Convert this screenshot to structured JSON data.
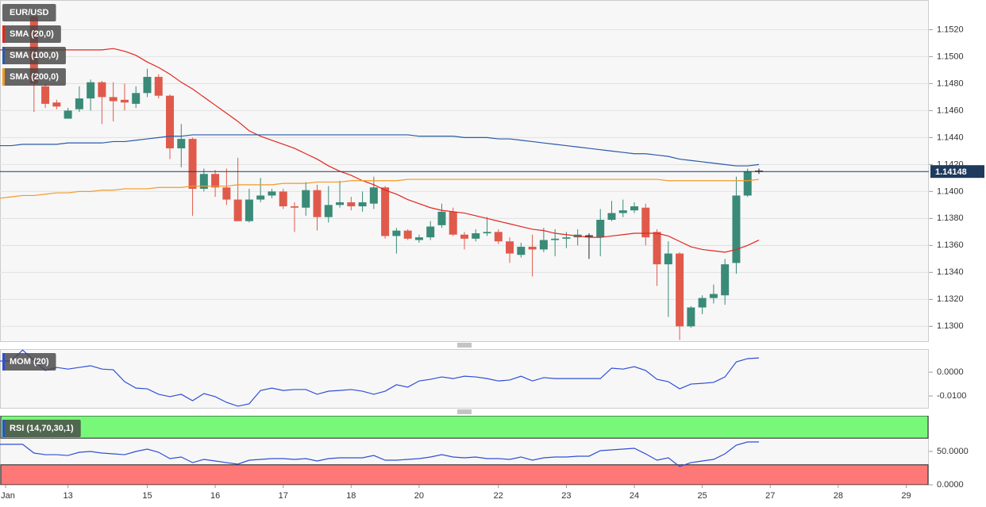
{
  "chart_data": [
    {
      "type": "candlestick",
      "title": "EUR/USD",
      "x": [
        -3,
        -2,
        -1,
        0,
        1,
        2,
        3,
        4,
        5,
        6,
        7,
        8,
        9,
        10,
        11,
        12,
        13,
        14,
        15,
        16,
        17,
        18,
        19,
        20,
        21,
        22,
        23,
        24,
        25,
        26,
        27,
        28,
        29,
        30,
        31,
        32,
        33,
        34,
        35,
        36,
        37,
        38,
        39,
        40,
        41,
        42,
        43,
        44,
        45,
        46,
        47,
        48,
        49,
        50,
        51,
        52,
        53,
        54,
        55,
        56,
        57,
        58,
        59,
        60,
        61,
        62,
        63,
        64
      ],
      "xlim": [
        -3,
        79
      ],
      "ylim": [
        1.1289,
        1.1542
      ],
      "yticks": [
        {
          "value": 1.13,
          "label": "1.1300"
        },
        {
          "value": 1.132,
          "label": "1.1320"
        },
        {
          "value": 1.134,
          "label": "1.1340"
        },
        {
          "value": 1.136,
          "label": "1.1360"
        },
        {
          "value": 1.138,
          "label": "1.1380"
        },
        {
          "value": 1.14,
          "label": "1.1400"
        },
        {
          "value": 1.142,
          "label": "1.1420"
        },
        {
          "value": 1.144,
          "label": "1.1440"
        },
        {
          "value": 1.146,
          "label": "1.1460"
        },
        {
          "value": 1.148,
          "label": "1.1480"
        },
        {
          "value": 1.15,
          "label": "1.1500"
        },
        {
          "value": 1.152,
          "label": "1.1520"
        }
      ],
      "grid": true,
      "open": [
        null,
        null,
        null,
        1.153,
        1.1478,
        1.1466,
        1.1454,
        1.1461,
        1.1469,
        1.1481,
        1.147,
        1.1468,
        1.1465,
        1.1473,
        1.1485,
        1.1471,
        1.1432,
        1.1439,
        1.1402,
        1.1413,
        1.1403,
        1.1394,
        1.1378,
        1.1394,
        1.1397,
        1.14,
        1.1389,
        1.1388,
        1.1401,
        1.1381,
        1.139,
        1.1392,
        1.1389,
        1.1391,
        1.1403,
        1.1367,
        1.1371,
        1.1364,
        1.1366,
        1.1375,
        1.1385,
        1.1368,
        1.1365,
        1.1369,
        1.137,
        1.1363,
        1.1353,
        1.1359,
        1.1357,
        1.1364,
        1.1365,
        1.1366,
        1.1367,
        1.1366,
        1.1379,
        1.1384,
        1.1386,
        1.1388,
        1.137,
        1.1346,
        1.1354,
        1.13,
        1.1314,
        1.1321,
        1.1323,
        1.1347,
        1.1397,
        1.1415
      ],
      "high": [
        null,
        null,
        null,
        1.1535,
        1.148,
        1.1468,
        1.1462,
        1.1478,
        1.1483,
        1.1482,
        1.1481,
        1.148,
        1.1478,
        1.1491,
        1.1487,
        1.1472,
        1.145,
        1.144,
        1.1417,
        1.1416,
        1.1417,
        1.1425,
        1.1402,
        1.141,
        1.1402,
        1.1402,
        1.1392,
        1.1407,
        1.1405,
        1.1404,
        1.1408,
        1.1396,
        1.14,
        1.1411,
        1.1404,
        1.1373,
        1.1372,
        1.1368,
        1.1378,
        1.1391,
        1.1388,
        1.137,
        1.1372,
        1.1381,
        1.1372,
        1.1366,
        1.1362,
        1.1368,
        1.1373,
        1.1372,
        1.137,
        1.1372,
        1.1369,
        1.1387,
        1.1393,
        1.1394,
        1.1392,
        1.1391,
        1.1372,
        1.1363,
        1.1355,
        1.1315,
        1.1323,
        1.1331,
        1.135,
        1.1411,
        1.1417,
        1.1417
      ],
      "low": [
        null,
        null,
        null,
        1.1459,
        1.1462,
        1.1461,
        1.1454,
        1.1459,
        1.146,
        1.145,
        1.1452,
        1.146,
        1.1462,
        1.147,
        1.1469,
        1.1424,
        1.1418,
        1.1382,
        1.14,
        1.1396,
        1.139,
        1.1378,
        1.1377,
        1.1392,
        1.1395,
        1.1387,
        1.137,
        1.1382,
        1.1371,
        1.1377,
        1.1388,
        1.1386,
        1.1385,
        1.1387,
        1.1365,
        1.1354,
        1.1364,
        1.1362,
        1.1364,
        1.1373,
        1.1367,
        1.1357,
        1.1363,
        1.1367,
        1.1361,
        1.1347,
        1.1351,
        1.1337,
        1.1355,
        1.1352,
        1.1358,
        1.136,
        1.135,
        1.1352,
        1.1378,
        1.1381,
        1.1384,
        1.136,
        1.133,
        1.1307,
        1.129,
        1.1299,
        1.1309,
        1.1317,
        1.1316,
        1.1339,
        1.1396,
        1.1413
      ],
      "close": [
        null,
        null,
        null,
        1.148,
        1.1465,
        1.1463,
        1.146,
        1.1469,
        1.1481,
        1.147,
        1.1467,
        1.1466,
        1.1473,
        1.1485,
        1.1471,
        1.1432,
        1.1439,
        1.1402,
        1.1413,
        1.1403,
        1.1394,
        1.1378,
        1.1394,
        1.1397,
        1.14,
        1.1389,
        1.1388,
        1.1401,
        1.1381,
        1.139,
        1.1392,
        1.1389,
        1.1392,
        1.1403,
        1.1367,
        1.1371,
        1.1365,
        1.1366,
        1.1374,
        1.1385,
        1.1368,
        1.1365,
        1.1369,
        1.137,
        1.1363,
        1.1354,
        1.1359,
        1.1357,
        1.1364,
        1.1365,
        1.1366,
        1.1368,
        1.1367,
        1.1379,
        1.1384,
        1.1386,
        1.1389,
        1.1366,
        1.1346,
        1.1354,
        1.13,
        1.1314,
        1.1321,
        1.1324,
        1.1346,
        1.1397,
        1.1415,
        1.1415
      ],
      "up_color": "#3a8a78",
      "down_color": "#e05a4b",
      "doji_color": "#222222",
      "series": [
        {
          "name": "SMA (20,0)",
          "color": "#e3261f",
          "values": [
            1.1505,
            1.1505,
            1.1505,
            1.1505,
            1.1505,
            1.1505,
            1.1505,
            1.1505,
            1.1505,
            1.1505,
            1.1506,
            1.1504,
            1.1501,
            1.1496,
            1.1492,
            1.1487,
            1.1481,
            1.1476,
            1.147,
            1.1464,
            1.1458,
            1.1452,
            1.1445,
            1.1441,
            1.1438,
            1.1435,
            1.1432,
            1.1428,
            1.1424,
            1.1419,
            1.1415,
            1.1412,
            1.1408,
            1.1405,
            1.1401,
            1.1398,
            1.1394,
            1.1391,
            1.1388,
            1.1386,
            1.1385,
            1.1384,
            1.1382,
            1.138,
            1.1378,
            1.1376,
            1.1374,
            1.1372,
            1.1371,
            1.1369,
            1.1368,
            1.1367,
            1.1366,
            1.1366,
            1.1367,
            1.1368,
            1.1369,
            1.1369,
            1.1369,
            1.1367,
            1.1363,
            1.1359,
            1.1357,
            1.1356,
            1.1355,
            1.1357,
            1.136,
            1.1364
          ]
        },
        {
          "name": "SMA (100,0)",
          "color": "#2a5aa8",
          "values": [
            1.1434,
            1.1434,
            1.1435,
            1.1435,
            1.1435,
            1.1435,
            1.1436,
            1.1436,
            1.1436,
            1.1436,
            1.1437,
            1.1437,
            1.1438,
            1.1439,
            1.144,
            1.1441,
            1.1441,
            1.1442,
            1.1442,
            1.1442,
            1.1442,
            1.1442,
            1.1442,
            1.1442,
            1.1442,
            1.1442,
            1.1442,
            1.1442,
            1.1442,
            1.1442,
            1.1442,
            1.1442,
            1.1442,
            1.1442,
            1.1442,
            1.1442,
            1.1442,
            1.1441,
            1.1441,
            1.1441,
            1.1441,
            1.144,
            1.144,
            1.144,
            1.1439,
            1.1439,
            1.1438,
            1.1437,
            1.1436,
            1.1435,
            1.1434,
            1.1433,
            1.1432,
            1.1431,
            1.143,
            1.1429,
            1.1428,
            1.1428,
            1.1427,
            1.1426,
            1.1424,
            1.1423,
            1.1422,
            1.1421,
            1.142,
            1.1419,
            1.1419,
            1.142
          ]
        },
        {
          "name": "SMA (200,0)",
          "color": "#f29a26",
          "values": [
            1.1395,
            1.1396,
            1.1397,
            1.1397,
            1.1398,
            1.1399,
            1.1399,
            1.14,
            1.14,
            1.1401,
            1.1401,
            1.1402,
            1.1402,
            1.1402,
            1.1403,
            1.1403,
            1.1403,
            1.1404,
            1.1404,
            1.1404,
            1.1404,
            1.1405,
            1.1405,
            1.1405,
            1.1405,
            1.1406,
            1.1406,
            1.1406,
            1.1407,
            1.1407,
            1.1407,
            1.1408,
            1.1408,
            1.1408,
            1.1408,
            1.1408,
            1.1409,
            1.1409,
            1.1409,
            1.1409,
            1.1409,
            1.1409,
            1.1409,
            1.1409,
            1.1409,
            1.1409,
            1.1409,
            1.1409,
            1.1409,
            1.1409,
            1.1409,
            1.1409,
            1.1409,
            1.1409,
            1.1409,
            1.1409,
            1.1409,
            1.1409,
            1.1409,
            1.1408,
            1.1408,
            1.1408,
            1.1408,
            1.1408,
            1.1408,
            1.1408,
            1.1408,
            1.1409
          ]
        }
      ],
      "last_price": 1.14148,
      "last_price_color": "#1e3a5c"
    },
    {
      "type": "line",
      "ylim": [
        -0.015,
        0.0097
      ],
      "yticks": [
        {
          "value": -0.01,
          "label": "-0.0100"
        },
        {
          "value": 0,
          "label": "0.0000"
        }
      ],
      "series": [
        {
          "name": "MOM (20)",
          "color": "#2f4fd6",
          "values": [
            0.0047,
            0.0047,
            0.0093,
            0.005,
            0.0007,
            0.002,
            0.0013,
            0.002,
            0.0027,
            0.0013,
            0.001,
            -0.004,
            -0.0067,
            -0.007,
            -0.0093,
            -0.0103,
            -0.0093,
            -0.012,
            -0.009,
            -0.0103,
            -0.0127,
            -0.0143,
            -0.0133,
            -0.0077,
            -0.0067,
            -0.0077,
            -0.0073,
            -0.0073,
            -0.0093,
            -0.008,
            -0.0077,
            -0.0073,
            -0.008,
            -0.0093,
            -0.008,
            -0.0053,
            -0.0063,
            -0.0037,
            -0.003,
            -0.002,
            -0.0027,
            -0.0017,
            -0.002,
            -0.0027,
            -0.0037,
            -0.0033,
            -0.0017,
            -0.0037,
            -0.0023,
            -0.0027,
            -0.0027,
            -0.0027,
            -0.0027,
            -0.0027,
            0.0017,
            0.0013,
            0.0023,
            0.0007,
            -0.003,
            -0.004,
            -0.007,
            -0.005,
            -0.0047,
            -0.0043,
            -0.002,
            0.0043,
            0.0057,
            0.006
          ]
        }
      ]
    },
    {
      "type": "line",
      "ylim": [
        0,
        103.6
      ],
      "yticks": [
        {
          "value": 0,
          "label": "0.0000"
        },
        {
          "value": 50,
          "label": "50.0000"
        }
      ],
      "overbought": 70,
      "overbought_color": "#78f878",
      "oversold": 30,
      "oversold_color": "#ff7878",
      "series": [
        {
          "name": "RSI (14,70,30,1)",
          "color": "#2f4fd6",
          "values": [
            60.7,
            60.7,
            60.7,
            47.6,
            45.2,
            45.2,
            44.0,
            48.8,
            50.0,
            47.6,
            46.4,
            45.2,
            50.0,
            53.6,
            48.8,
            39.3,
            41.7,
            33.3,
            38.1,
            35.7,
            33.3,
            31.0,
            36.9,
            38.1,
            39.3,
            39.3,
            38.1,
            39.3,
            35.7,
            39.3,
            40.5,
            40.5,
            40.5,
            44.0,
            36.9,
            36.9,
            38.1,
            39.3,
            41.7,
            45.2,
            41.7,
            40.5,
            41.7,
            39.3,
            39.3,
            38.1,
            41.7,
            36.9,
            40.5,
            41.7,
            41.7,
            42.9,
            42.9,
            51.2,
            52.4,
            53.6,
            54.8,
            46.4,
            36.9,
            40.5,
            27.4,
            33.3,
            35.7,
            38.1,
            46.4,
            59.5,
            64.3,
            64.3
          ]
        }
      ],
      "xticks": [
        {
          "value": -2.5,
          "label": "Jan"
        },
        {
          "value": 3,
          "label": "13"
        },
        {
          "value": 10,
          "label": "15"
        },
        {
          "value": 16,
          "label": "16"
        },
        {
          "value": 22,
          "label": "17"
        },
        {
          "value": 28,
          "label": "18"
        },
        {
          "value": 34,
          "label": "20"
        },
        {
          "value": 41,
          "label": "22"
        },
        {
          "value": 47,
          "label": "23"
        },
        {
          "value": 53,
          "label": "24"
        },
        {
          "value": 59,
          "label": "25"
        },
        {
          "value": 65,
          "label": "27"
        },
        {
          "value": 71,
          "label": "28"
        },
        {
          "value": 77,
          "label": "29"
        }
      ]
    }
  ]
}
